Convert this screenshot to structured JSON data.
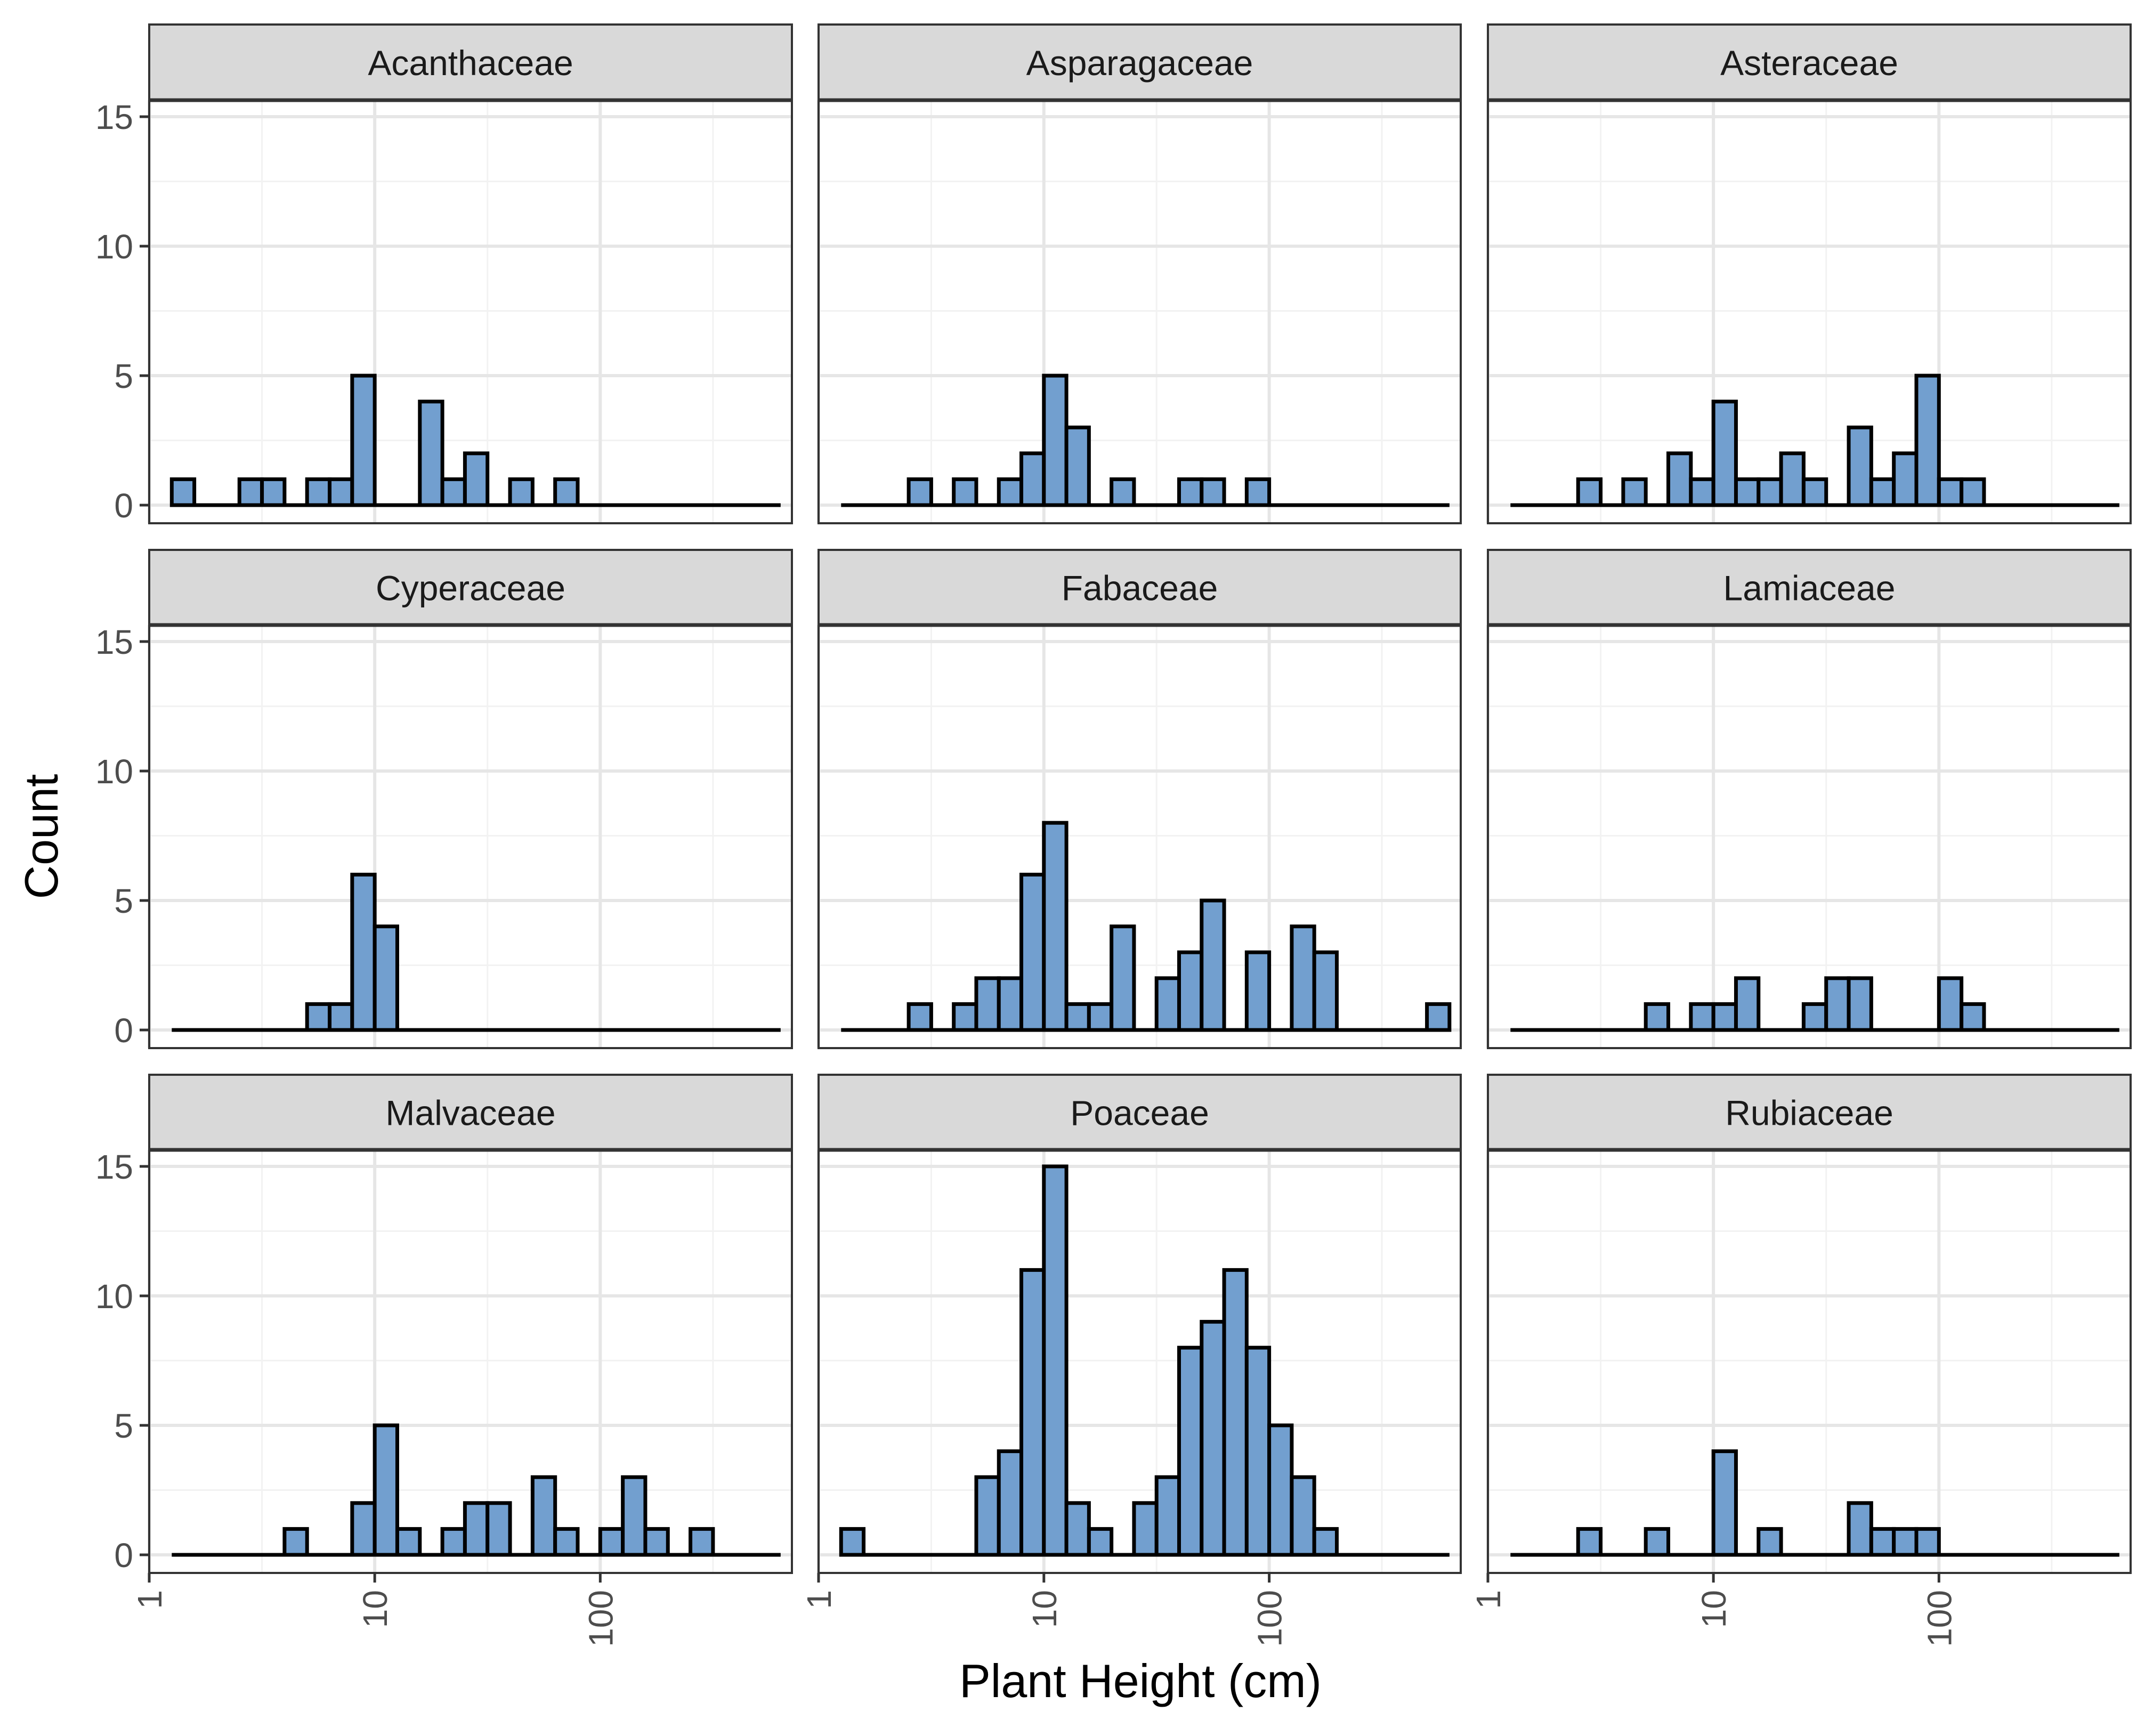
{
  "figure": {
    "xlabel": "Plant Height (cm)",
    "ylabel": "Count"
  },
  "style": {
    "bar_fill": "#729fcf",
    "bar_stroke": "#000000",
    "strip_fill": "#d9d9d9",
    "strip_border": "#333333",
    "panel_border": "#333333",
    "grid_major": "#e6e6e6",
    "grid_minor": "#f2f2f2",
    "tick_text": "#4d4d4d"
  },
  "chart_data": {
    "type": "bar",
    "subtype": "faceted histogram",
    "x_scale": "log10",
    "xlim": [
      1,
      700
    ],
    "ylim": [
      0,
      16
    ],
    "x_ticks": [
      1,
      10,
      100
    ],
    "x_tick_labels": [
      "1",
      "10",
      "100"
    ],
    "y_ticks": [
      0,
      5,
      10,
      15
    ],
    "y_tick_labels": [
      "0",
      "5",
      "10",
      "15"
    ],
    "bin_edges_log10": [
      0.1,
      0.2,
      0.3,
      0.4,
      0.5,
      0.6,
      0.7,
      0.8,
      0.9,
      1.0,
      1.1,
      1.2,
      1.3,
      1.4,
      1.5,
      1.6,
      1.7,
      1.8,
      1.9,
      2.0,
      2.1,
      2.2,
      2.3,
      2.4,
      2.5,
      2.6,
      2.7,
      2.8
    ],
    "facets": [
      {
        "name": "Acanthaceae",
        "counts": [
          1,
          0,
          0,
          1,
          1,
          0,
          1,
          1,
          5,
          0,
          0,
          4,
          1,
          2,
          0,
          1,
          0,
          1,
          0,
          0,
          0,
          0,
          0,
          0,
          0,
          0,
          0
        ]
      },
      {
        "name": "Asparagaceae",
        "counts": [
          0,
          0,
          0,
          1,
          0,
          1,
          0,
          1,
          2,
          5,
          3,
          0,
          1,
          0,
          0,
          1,
          1,
          0,
          1,
          0,
          0,
          0,
          0,
          0,
          0,
          0,
          0
        ]
      },
      {
        "name": "Asteraceae",
        "counts": [
          0,
          0,
          0,
          1,
          0,
          1,
          0,
          2,
          1,
          4,
          1,
          1,
          2,
          1,
          0,
          3,
          1,
          2,
          5,
          1,
          1,
          0,
          0,
          0,
          0,
          0,
          0
        ]
      },
      {
        "name": "Cyperaceae",
        "counts": [
          0,
          0,
          0,
          0,
          0,
          0,
          1,
          1,
          6,
          4,
          0,
          0,
          0,
          0,
          0,
          0,
          0,
          0,
          0,
          0,
          0,
          0,
          0,
          0,
          0,
          0,
          0
        ]
      },
      {
        "name": "Fabaceae",
        "counts": [
          0,
          0,
          0,
          1,
          0,
          1,
          2,
          2,
          6,
          8,
          1,
          1,
          4,
          0,
          2,
          3,
          5,
          0,
          3,
          0,
          4,
          3,
          0,
          0,
          0,
          0,
          1
        ]
      },
      {
        "name": "Lamiaceae",
        "counts": [
          0,
          0,
          0,
          0,
          0,
          0,
          1,
          0,
          1,
          1,
          2,
          0,
          0,
          1,
          2,
          2,
          0,
          0,
          0,
          2,
          1,
          0,
          0,
          0,
          0,
          0,
          0
        ]
      },
      {
        "name": "Malvaceae",
        "counts": [
          0,
          0,
          0,
          0,
          0,
          1,
          0,
          0,
          2,
          5,
          1,
          0,
          1,
          2,
          2,
          0,
          3,
          1,
          0,
          1,
          3,
          1,
          0,
          1,
          0,
          0,
          0
        ]
      },
      {
        "name": "Poaceae",
        "counts": [
          1,
          0,
          0,
          0,
          0,
          0,
          3,
          4,
          11,
          15,
          2,
          1,
          0,
          2,
          3,
          8,
          9,
          11,
          8,
          5,
          3,
          1,
          0,
          0,
          0,
          0,
          0
        ]
      },
      {
        "name": "Rubiaceae",
        "counts": [
          0,
          0,
          0,
          1,
          0,
          0,
          1,
          0,
          0,
          4,
          0,
          1,
          0,
          0,
          0,
          2,
          1,
          1,
          1,
          0,
          0,
          0,
          0,
          0,
          0,
          0,
          0
        ]
      }
    ]
  }
}
